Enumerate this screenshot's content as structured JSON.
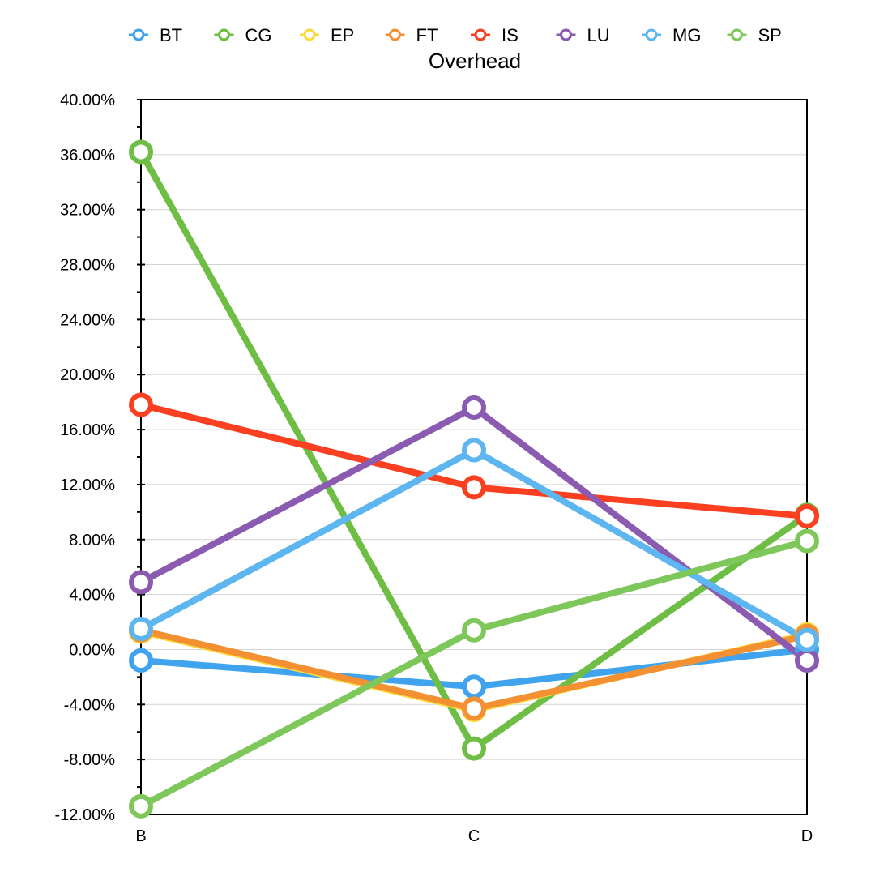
{
  "chart_data": {
    "type": "line",
    "title": "Overhead",
    "xlabel": "",
    "ylabel": "",
    "categories": [
      "B",
      "C",
      "D"
    ],
    "ylim": [
      -0.12,
      0.4
    ],
    "y_tick_labels": [
      "40.00%",
      "36.00%",
      "32.00%",
      "28.00%",
      "24.00%",
      "20.00%",
      "16.00%",
      "12.00%",
      "8.00%",
      "4.00%",
      "0.00%",
      "-4.00%",
      "-8.00%",
      "-12.00%"
    ],
    "grid": true,
    "legend_position": "top",
    "series": [
      {
        "name": "BT",
        "color": "#3fa3ee",
        "values": [
          -0.008,
          -0.027,
          0.0
        ]
      },
      {
        "name": "CG",
        "color": "#6ebe45",
        "values": [
          0.362,
          -0.072,
          0.098
        ]
      },
      {
        "name": "EP",
        "color": "#fcd93a",
        "values": [
          0.013,
          -0.044,
          0.011
        ]
      },
      {
        "name": "FT",
        "color": "#f39132",
        "values": [
          0.014,
          -0.043,
          0.01
        ]
      },
      {
        "name": "IS",
        "color": "#fb4021",
        "values": [
          0.178,
          0.118,
          0.097
        ]
      },
      {
        "name": "LU",
        "color": "#8a5bb0",
        "values": [
          0.049,
          0.176,
          -0.008
        ]
      },
      {
        "name": "MG",
        "color": "#5db6f0",
        "values": [
          0.015,
          0.145,
          0.007
        ]
      },
      {
        "name": "SP",
        "color": "#7ec75b",
        "values": [
          -0.114,
          0.014,
          0.079
        ]
      }
    ]
  }
}
